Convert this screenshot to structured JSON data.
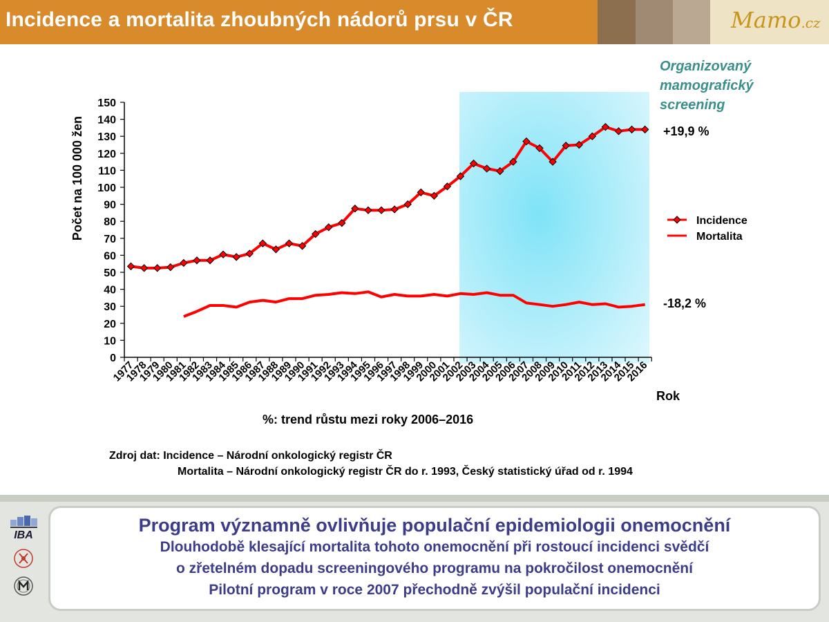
{
  "header": {
    "title": "Incidence a mortalita zhoubných nádorů prsu v ČR",
    "brand_color": "#d98a2b",
    "swatches": [
      "#8b6f4e",
      "#a08a73",
      "#baa893"
    ],
    "logo_main": "Mamo",
    "logo_tld": ".cz"
  },
  "chart_data": {
    "type": "line",
    "title": "",
    "xlabel": "Rok",
    "ylabel": "Počet  na 100 000 žen",
    "ylim": [
      0,
      150
    ],
    "ytick_step": 10,
    "grid": false,
    "legend_position": "right",
    "x": [
      "1977",
      "1978",
      "1979",
      "1980",
      "1981",
      "1982",
      "1983",
      "1984",
      "1985",
      "1986",
      "1987",
      "1988",
      "1989",
      "1990",
      "1991",
      "1992",
      "1993",
      "1994",
      "1995",
      "1996",
      "1997",
      "1998",
      "1999",
      "2000",
      "2001",
      "2002",
      "2003",
      "2004",
      "2005",
      "2006",
      "2007",
      "2008",
      "2009",
      "2010",
      "2011",
      "2012",
      "2013",
      "2014",
      "2015",
      "2016"
    ],
    "series": [
      {
        "name": "Incidence",
        "color": "#ff0000",
        "marker": "diamond",
        "values": [
          53.5,
          52.5,
          52.5,
          53,
          55.5,
          57,
          57,
          60.5,
          59,
          61,
          67,
          63.5,
          67,
          65.5,
          72.5,
          76.5,
          79,
          87.5,
          86.5,
          86.5,
          87,
          90,
          97,
          95,
          100.5,
          106.5,
          114,
          111,
          109.5,
          115,
          127,
          123,
          115,
          124.5,
          125,
          130,
          135.5,
          133,
          134,
          134
        ]
      },
      {
        "name": "Mortalita",
        "color": "#ff0000",
        "marker": "none",
        "values": [
          null,
          null,
          null,
          null,
          24,
          27,
          30.5,
          30.5,
          29.5,
          32.5,
          33.5,
          32.5,
          34.5,
          34.5,
          36.5,
          37,
          38,
          37.5,
          38.5,
          35.5,
          37,
          36,
          36,
          37,
          36,
          37.5,
          37,
          38,
          36.5,
          36.5,
          32,
          31,
          30,
          31,
          32.5,
          31,
          31.5,
          29.5,
          30,
          31
        ]
      }
    ],
    "screening_band": {
      "from": "2003",
      "to": "2016",
      "label": "Organizovaný mamografický screening",
      "color": "#7fe3f7"
    },
    "annotations": {
      "incidence_trend": "+19,9 %",
      "mortality_trend": "-18,2 %",
      "trend_note": "%: trend růstu mezi roky 2006–2016"
    }
  },
  "source": {
    "line1": "Zdroj dat: Incidence – Národní onkologický registr ČR",
    "line2": "Mortalita – Národní onkologický registr ČR do r. 1993, Český statistický úřad od r. 1994"
  },
  "callout": {
    "title": "Program významně ovlivňuje populační epidemiologii onemocnění",
    "lines": [
      "Dlouhodobě klesající mortalita tohoto onemocnění při rostoucí incidenci svědčí",
      "o zřetelném dopadu screeningového programu na pokročilost onemocnění",
      "Pilotní program v roce 2007 přechodně zvýšil populační incidenci"
    ]
  },
  "logos": {
    "top": "IBA",
    "top_icon": "iba-logo-icon",
    "middle_icon": "medical-emblem-icon",
    "bottom_icon": "university-seal-icon"
  }
}
